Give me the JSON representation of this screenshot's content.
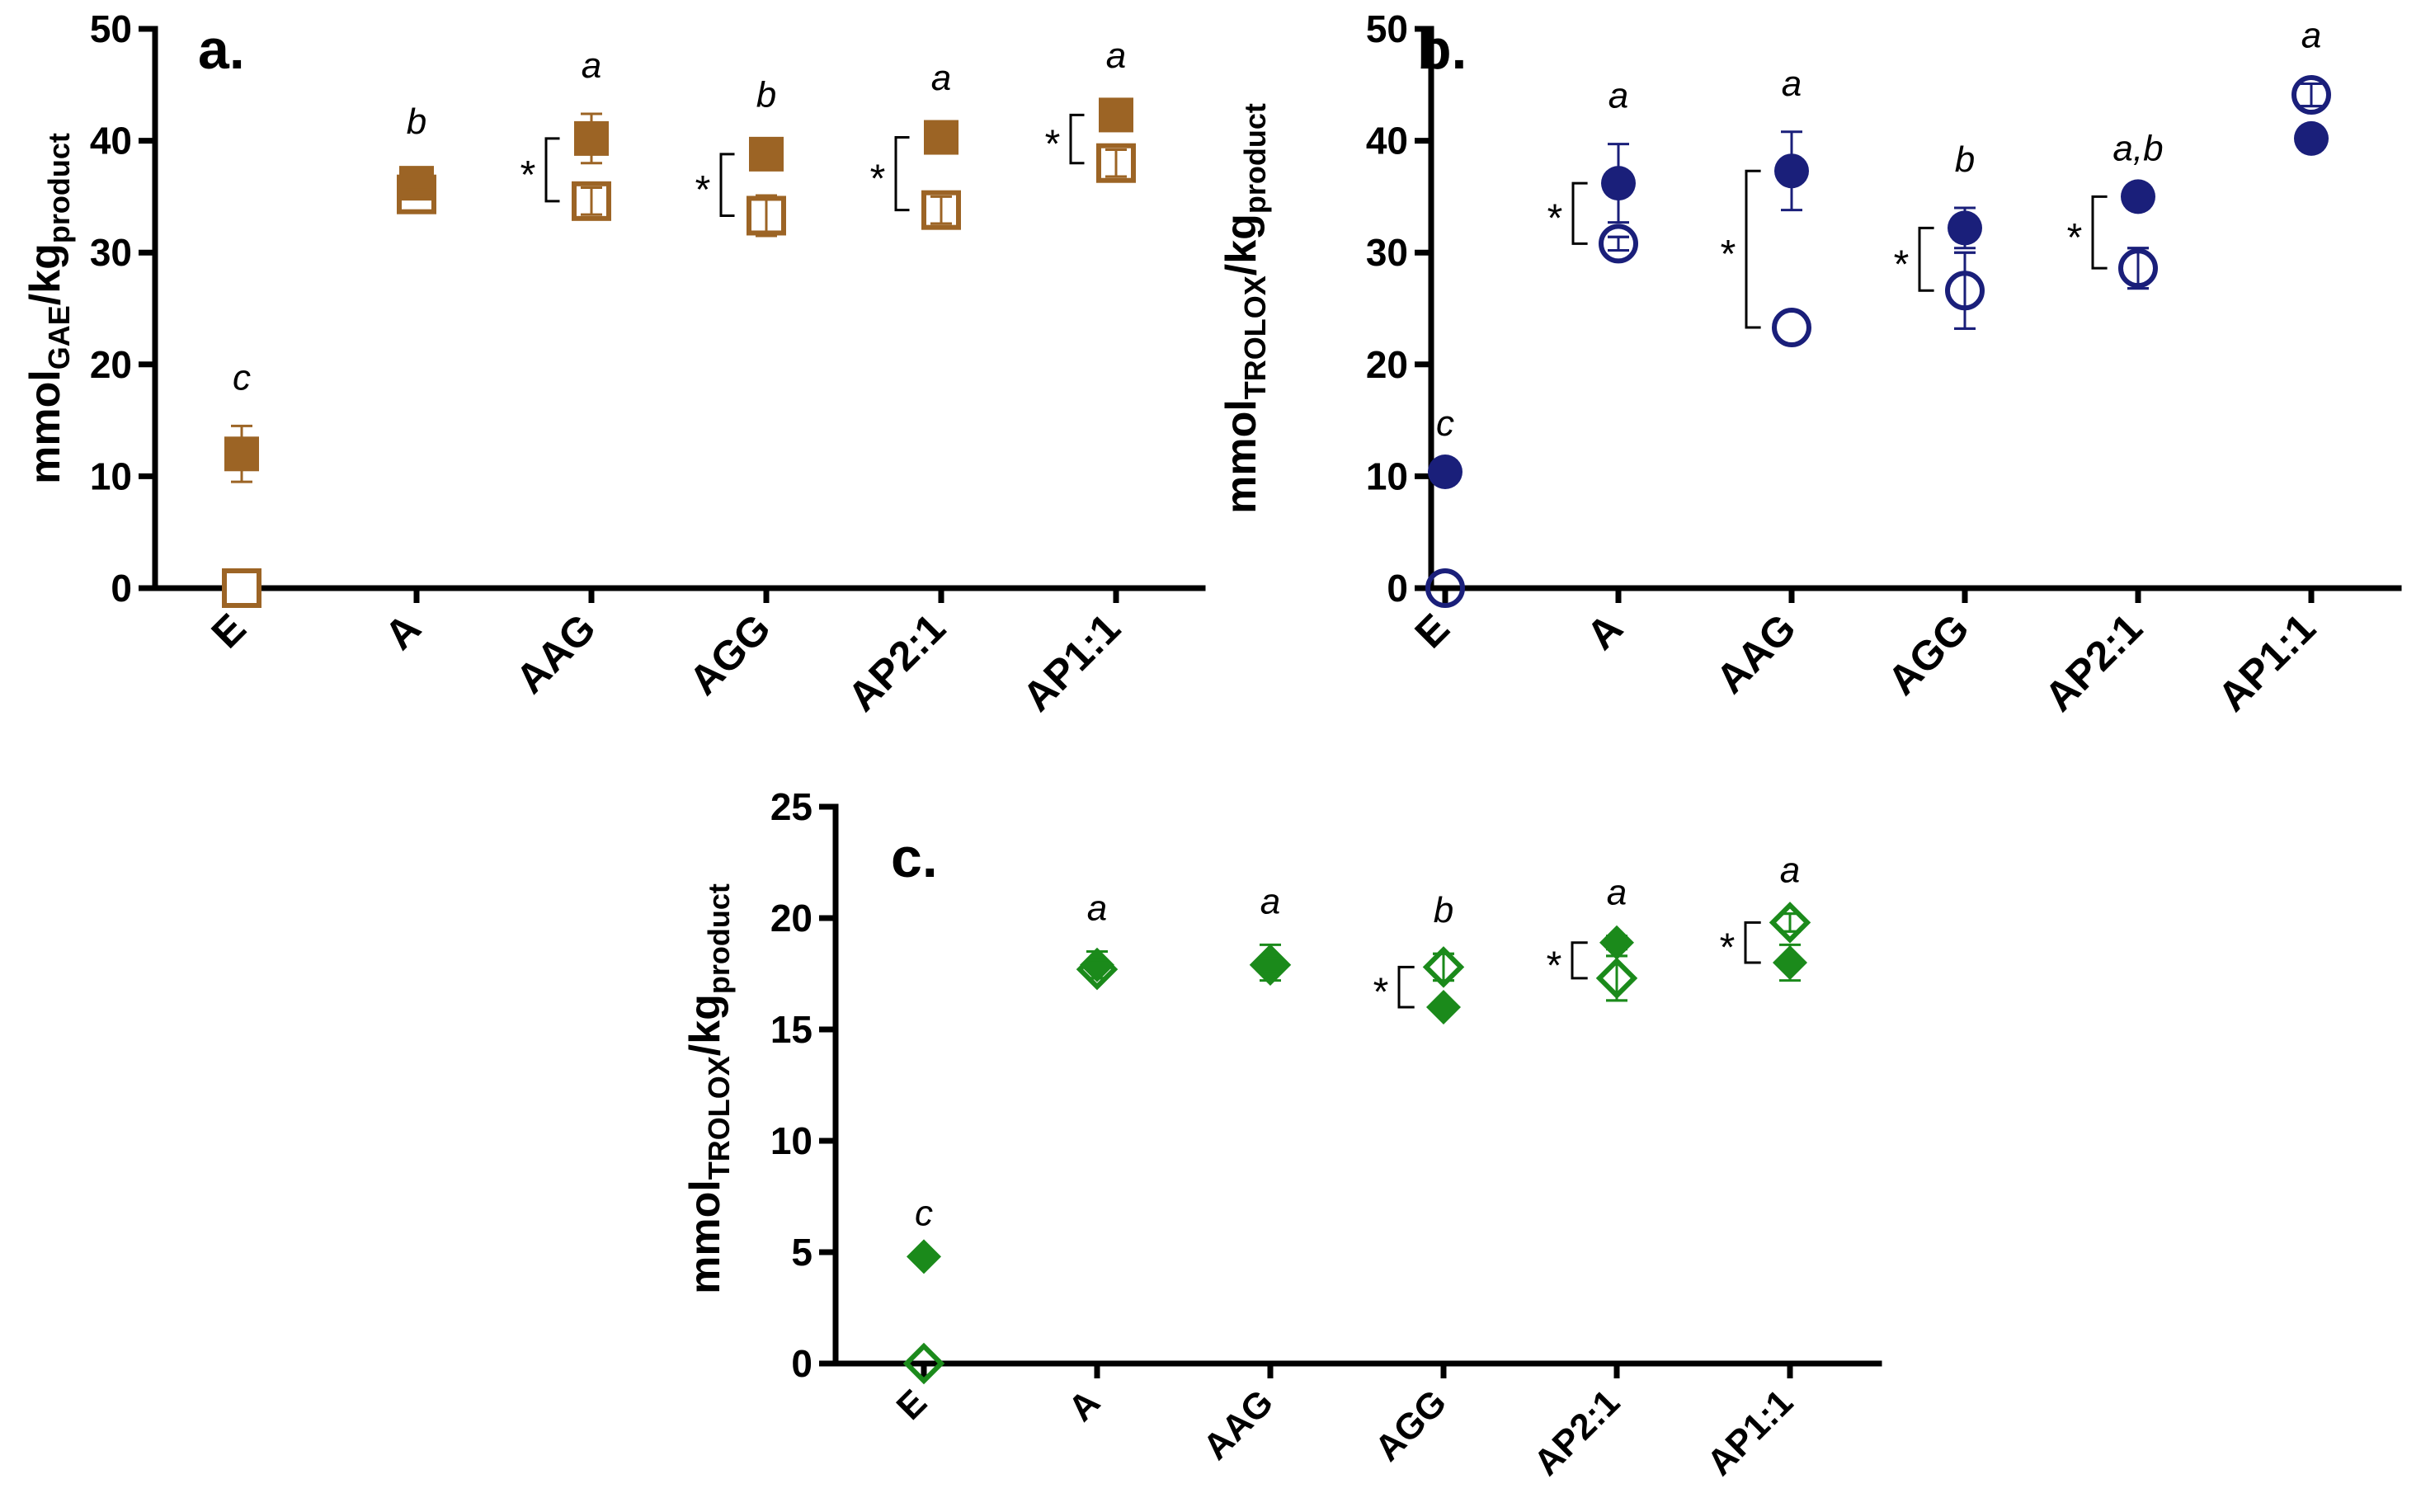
{
  "chart_data": [
    {
      "type": "scatter",
      "panel_label": "a.",
      "ylabel": {
        "main": "mmol",
        "sub1": "GAE",
        "mid": "/kg",
        "sub2": "product"
      },
      "categories": [
        "E",
        "A",
        "AAG",
        "AGG",
        "AP2:1",
        "AP1:1"
      ],
      "ylim": [
        0,
        50
      ],
      "yticks": [
        "0",
        "10",
        "20",
        "30",
        "40",
        "50"
      ],
      "color": "#9C6425",
      "marker": "square",
      "series": [
        {
          "name": "filled",
          "values": [
            12,
            36.2,
            40.2,
            38.8,
            40.3,
            42.3
          ],
          "err": [
            2.5,
            1.2,
            2.2,
            1.0,
            1.0,
            1.0
          ]
        },
        {
          "name": "open",
          "values": [
            0,
            35.2,
            34.6,
            33.3,
            33.8,
            38.0
          ],
          "err": [
            0,
            0.4,
            1.2,
            1.8,
            1.2,
            1.2
          ]
        }
      ],
      "letters": [
        "c",
        "b",
        "a",
        "b",
        "a",
        "a"
      ],
      "significance": [
        {
          "category": "AAG",
          "label": "*"
        },
        {
          "category": "AGG",
          "label": "*"
        },
        {
          "category": "AP2:1",
          "label": "*"
        },
        {
          "category": "AP1:1",
          "label": "*"
        }
      ]
    },
    {
      "type": "scatter",
      "panel_label": "b.",
      "ylabel": {
        "main": "mmol",
        "sub1": "TROLOX",
        "mid": "/kg",
        "sub2": "product"
      },
      "categories": [
        "E",
        "A",
        "AAG",
        "AGG",
        "AP2:1",
        "AP1:1"
      ],
      "ylim": [
        0,
        50
      ],
      "yticks": [
        "0",
        "10",
        "20",
        "30",
        "40",
        "50"
      ],
      "color": "#1A1F7A",
      "marker": "circle",
      "series": [
        {
          "name": "filled",
          "values": [
            10.4,
            36.2,
            37.3,
            32.2,
            35.0,
            40.2
          ],
          "err": [
            0,
            3.5,
            3.5,
            1.8,
            0,
            0
          ]
        },
        {
          "name": "open",
          "values": [
            0,
            30.8,
            23.3,
            26.6,
            28.6,
            44.1
          ],
          "err": [
            0,
            0.6,
            0,
            3.4,
            1.8,
            1.0
          ]
        }
      ],
      "letters": [
        "c",
        "a",
        "a",
        "b",
        "a,b",
        "a"
      ],
      "significance": [
        {
          "category": "A",
          "label": "*"
        },
        {
          "category": "AAG",
          "label": "*"
        },
        {
          "category": "AGG",
          "label": "*"
        },
        {
          "category": "AP2:1",
          "label": "*"
        }
      ]
    },
    {
      "type": "scatter",
      "panel_label": "c.",
      "ylabel": {
        "main": "mmol",
        "sub1": "TROLOX",
        "mid": "/kg",
        "sub2": "product"
      },
      "categories": [
        "E",
        "A",
        "AAG",
        "AGG",
        "AP2:1",
        "AP1:1"
      ],
      "ylim": [
        0,
        25
      ],
      "yticks": [
        "0",
        "5",
        "10",
        "15",
        "20",
        "25"
      ],
      "color": "#1B8A1B",
      "marker": "diamond",
      "series": [
        {
          "name": "filled",
          "values": [
            4.8,
            17.9,
            18.0,
            16.0,
            18.9,
            18.0
          ],
          "err": [
            0,
            0.6,
            0.8,
            0,
            0.3,
            0.8
          ]
        },
        {
          "name": "open",
          "values": [
            0,
            17.7,
            17.9,
            17.8,
            17.3,
            19.8
          ],
          "err": [
            0,
            0.4,
            0.3,
            0.6,
            1.0,
            0.4
          ]
        }
      ],
      "letters": [
        "c",
        "a",
        "a",
        "b",
        "a",
        "a"
      ],
      "significance": [
        {
          "category": "AGG",
          "label": "*"
        },
        {
          "category": "AP2:1",
          "label": "*"
        },
        {
          "category": "AP1:1",
          "label": "*"
        }
      ]
    }
  ]
}
